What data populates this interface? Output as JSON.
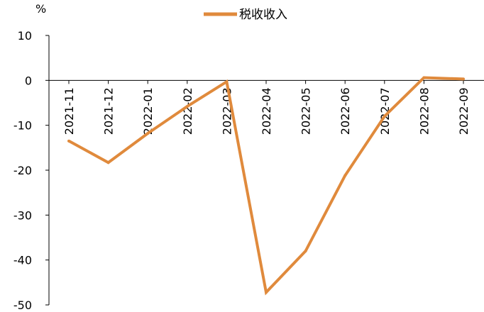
{
  "chart_data": {
    "type": "line",
    "unit": "%",
    "categories": [
      "2021-11",
      "2021-12",
      "2022-01",
      "2022-02",
      "2022-03",
      "2022-04",
      "2022-05",
      "2022-06",
      "2022-07",
      "2022-08",
      "2022-09"
    ],
    "series": [
      {
        "name": "税收收入",
        "color": "#E08A3C",
        "values": [
          -13.5,
          -18.3,
          -11.8,
          -5.8,
          -0.3,
          -47.2,
          -38.0,
          -21.2,
          -8.0,
          0.6,
          0.3
        ]
      }
    ],
    "ylim": [
      -50,
      10
    ],
    "yticks": [
      10,
      0,
      -10,
      -20,
      -30,
      -40,
      -50
    ],
    "legend": "top-center",
    "grid": false
  }
}
